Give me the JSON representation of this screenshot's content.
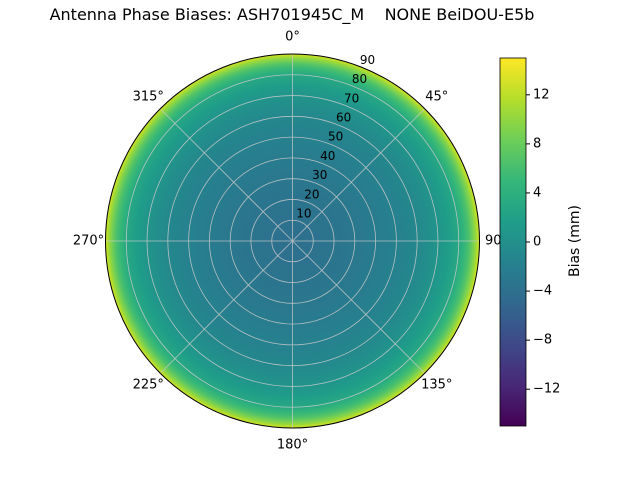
{
  "title": "Antenna Phase Biases: ASH701945C_M    NONE BeiDOU-E5b",
  "chart_data": {
    "type": "heatmap",
    "projection": "polar",
    "description": "Antenna phase bias versus azimuth (theta) and zenith angle (radius); pattern is azimuth-symmetric concentric rings, bias rising sharply toward the horizon (r=90)",
    "theta_ticks_deg": [
      0,
      45,
      90,
      135,
      180,
      225,
      270,
      315
    ],
    "theta_tick_labels": [
      "0°",
      "45°",
      "90°",
      "135°",
      "180°",
      "225°",
      "270°",
      "315°"
    ],
    "r_ticks": [
      10,
      20,
      30,
      40,
      50,
      60,
      70,
      80,
      90
    ],
    "r_max": 90,
    "r_label_angle_deg": 22.5,
    "radial_profile": {
      "zenith_deg": [
        0,
        10,
        20,
        30,
        40,
        50,
        60,
        70,
        75,
        80,
        85,
        88,
        90
      ],
      "bias_mm": [
        -4,
        -3.8,
        -3.4,
        -3,
        -2.5,
        -1.8,
        -1,
        0.5,
        1.6,
        3,
        6.5,
        10,
        13
      ]
    },
    "colorbar": {
      "label": "Bias (mm)",
      "ticks": [
        12,
        8,
        4,
        0,
        -4,
        -8,
        -12
      ],
      "tick_labels": [
        "12",
        "8",
        "4",
        "0",
        "−4",
        "−8",
        "−12"
      ],
      "vmin": -15,
      "vmax": 15,
      "colormap": "viridis",
      "stops": [
        "#440154",
        "#482878",
        "#3e4989",
        "#31688e",
        "#26828e",
        "#1f9e89",
        "#35b779",
        "#6ece58",
        "#b5de2b",
        "#fde725"
      ]
    }
  },
  "colors": {
    "background": "#ffffff",
    "grid": "#cccccc",
    "outline": "#000000",
    "text": "#000000"
  }
}
